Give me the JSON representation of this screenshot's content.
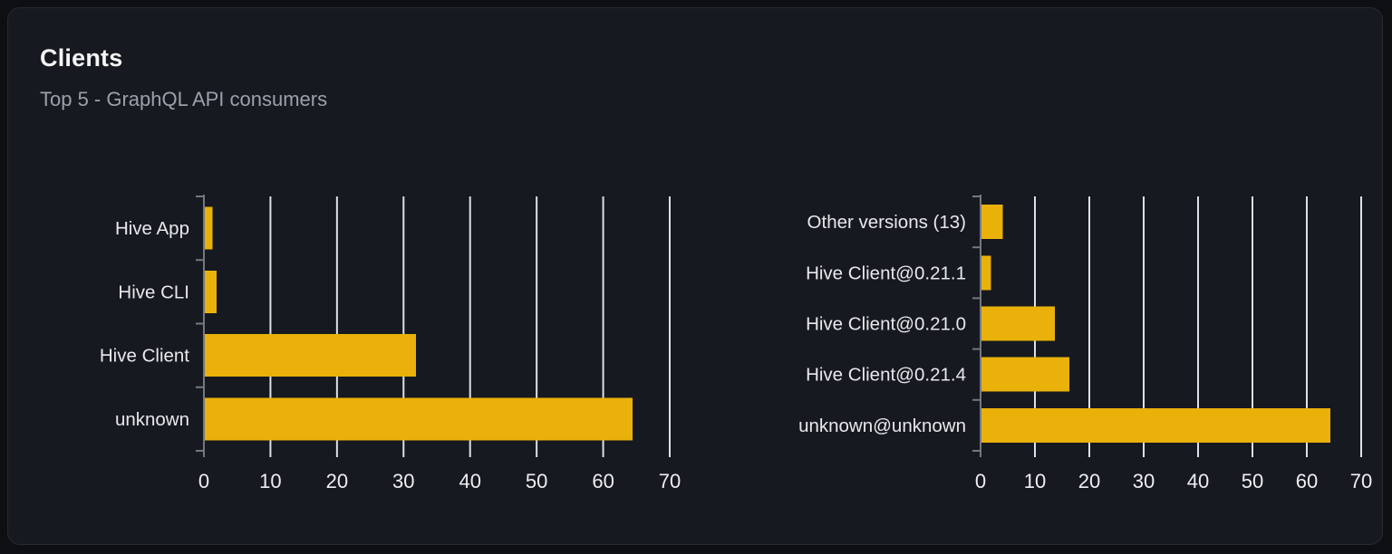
{
  "card": {
    "title": "Clients",
    "subtitle": "Top 5 - GraphQL API consumers"
  },
  "colors": {
    "bar": "#e9b10a",
    "grid": "#dbe1ec",
    "axis": "#75797f",
    "tick_text": "#edeff2",
    "category_text": "#e7e9ec",
    "card_bg": "#16191f",
    "card_border": "#262a31",
    "page_bg": "#0d0f13",
    "title_text": "#f4f5f6",
    "subtitle_text": "#9aa1ab"
  },
  "chart_data": [
    {
      "type": "bar",
      "orientation": "horizontal",
      "name": "clients-bar-chart",
      "categories": [
        "Hive App",
        "Hive CLI",
        "Hive Client",
        "unknown"
      ],
      "values": [
        1.3,
        1.9,
        31.9,
        64.4
      ],
      "xlim": [
        0,
        70
      ],
      "xticks": [
        "0",
        "10",
        "20",
        "30",
        "40",
        "50",
        "60",
        "70"
      ],
      "grid": true,
      "legend": false
    },
    {
      "type": "bar",
      "orientation": "horizontal",
      "name": "client-versions-bar-chart",
      "categories": [
        "Other versions (13)",
        "Hive Client@0.21.1",
        "Hive Client@0.21.0",
        "Hive Client@0.21.4",
        "unknown@unknown"
      ],
      "values": [
        4.1,
        1.9,
        13.7,
        16.3,
        64.3
      ],
      "xlim": [
        0,
        70
      ],
      "xticks": [
        "0",
        "10",
        "20",
        "30",
        "40",
        "50",
        "60",
        "70"
      ],
      "grid": true,
      "legend": false
    }
  ]
}
